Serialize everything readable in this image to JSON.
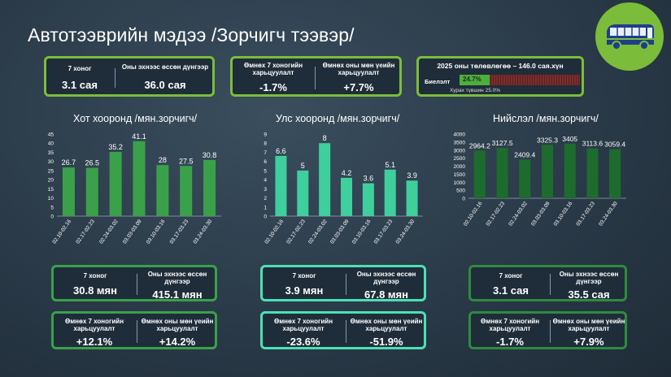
{
  "title": "Автотээврийн мэдээ /Зорчигч тээвэр/",
  "logo": {
    "icon": "bus-icon"
  },
  "top_cards": {
    "week": {
      "week_label": "7 хоног",
      "week_value": "3.1 сая",
      "ytd_label": "Оны эхнээс өссөн дүнгээр",
      "ytd_value": "36.0 сая"
    },
    "compare": {
      "prev_week_label": "Өмнөх 7 хоногийн харьцуулалт",
      "prev_week_value": "-1.7%",
      "prev_year_label": "Өмнөх оны мөн үеийн харьцуулалт",
      "prev_year_value": "+7.7%"
    },
    "plan": {
      "title": "2025 оны төлөвлөгөө – 146.0 сая.хүн",
      "label": "Биелэлт",
      "percent_text": "24.7%",
      "percent": 24.7,
      "note": "Хурах түвшин 25.0%"
    }
  },
  "charts": [
    {
      "title": "Хот хооронд /мян.зорчигч/",
      "color": "#3aa14a",
      "chart_data": {
        "type": "bar",
        "categories": [
          "02.10-02.16",
          "02.17-02.23",
          "02.24-03.02",
          "03.03-03.09",
          "03.10-03.16",
          "03.17-03.23",
          "03.24-03.30"
        ],
        "values": [
          26.7,
          26.5,
          35.2,
          41.1,
          28,
          27.5,
          30.8
        ],
        "value_labels": [
          "26.7",
          "26.5",
          "35.2",
          "41.1",
          "28",
          "27.5",
          "30.8"
        ],
        "ylim": [
          0,
          45
        ],
        "yticks": [
          "0",
          "5",
          "10",
          "15",
          "20",
          "25",
          "30",
          "35",
          "40",
          "45"
        ]
      },
      "cards": {
        "week_label": "7 хоног",
        "week_value": "30.8 мян",
        "ytd_label": "Оны эхнээс өссөн дүнгээр",
        "ytd_value": "415.1 мян",
        "prev_week_label": "Өмнөх 7 хоногийн харьцуулалт",
        "prev_week_value": "+12.1%",
        "prev_year_label": "Өмнөх оны мөн үеийн харьцуулалт",
        "prev_year_value": "+14.2%"
      }
    },
    {
      "title": "Улс хооронд /мян.зорчигч/",
      "color": "#3fcf9d",
      "chart_data": {
        "type": "bar",
        "categories": [
          "02.10-02.16",
          "02.17-02.23",
          "02.24-03.02",
          "03.03-03.09",
          "03.10-03.16",
          "03.17-03.23",
          "03.24-03.30"
        ],
        "values": [
          6.6,
          5,
          8,
          4.2,
          3.6,
          5.1,
          3.9
        ],
        "value_labels": [
          "6.6",
          "5",
          "8",
          "4.2",
          "3.6",
          "5.1",
          "3.9"
        ],
        "ylim": [
          0,
          9
        ],
        "yticks": [
          "0",
          "1",
          "2",
          "3",
          "4",
          "5",
          "6",
          "7",
          "8",
          "9"
        ]
      },
      "cards": {
        "week_label": "7 хоног",
        "week_value": "3.9 мян",
        "ytd_label": "Оны эхнээс өссөн дүнгээр",
        "ytd_value": "67.8 мян",
        "prev_week_label": "Өмнөх 7 хоногийн харьцуулалт",
        "prev_week_value": "-23.6%",
        "prev_year_label": "Өмнөх оны мөн үеийн харьцуулалт",
        "prev_year_value": "-51.9%"
      }
    },
    {
      "title": "Нийслэл /мян.зорчигч/",
      "color": "#1e6b2e",
      "chart_data": {
        "type": "bar",
        "categories": [
          "02.10-02.16",
          "02.17-02.23",
          "02.24-03.02",
          "03.03-03.09",
          "03.10-03.16",
          "03.17-03.23",
          "03.24-03.30"
        ],
        "values": [
          2964.2,
          3127.5,
          2409.4,
          3325.3,
          3405,
          3113.6,
          3059.4
        ],
        "value_labels": [
          "2964.2",
          "3127.5",
          "2409.4",
          "3325.3",
          "3405",
          "3113.6",
          "3059.4"
        ],
        "ylim": [
          0,
          4000
        ],
        "yticks": [
          "0",
          "500",
          "1000",
          "1500",
          "2000",
          "2500",
          "3000",
          "3500",
          "4000"
        ]
      },
      "cards": {
        "week_label": "7 хоног",
        "week_value": "3.1 сая",
        "ytd_label": "Оны эхнээс өссөн дүнгээр",
        "ytd_value": "35.5 сая",
        "prev_week_label": "Өмнөх 7 хоногийн харьцуулалт",
        "prev_week_value": "-1.7%",
        "prev_year_label": "Өмнөх оны мөн үеийн харьцуулалт",
        "prev_year_value": "+7.9%"
      }
    }
  ]
}
